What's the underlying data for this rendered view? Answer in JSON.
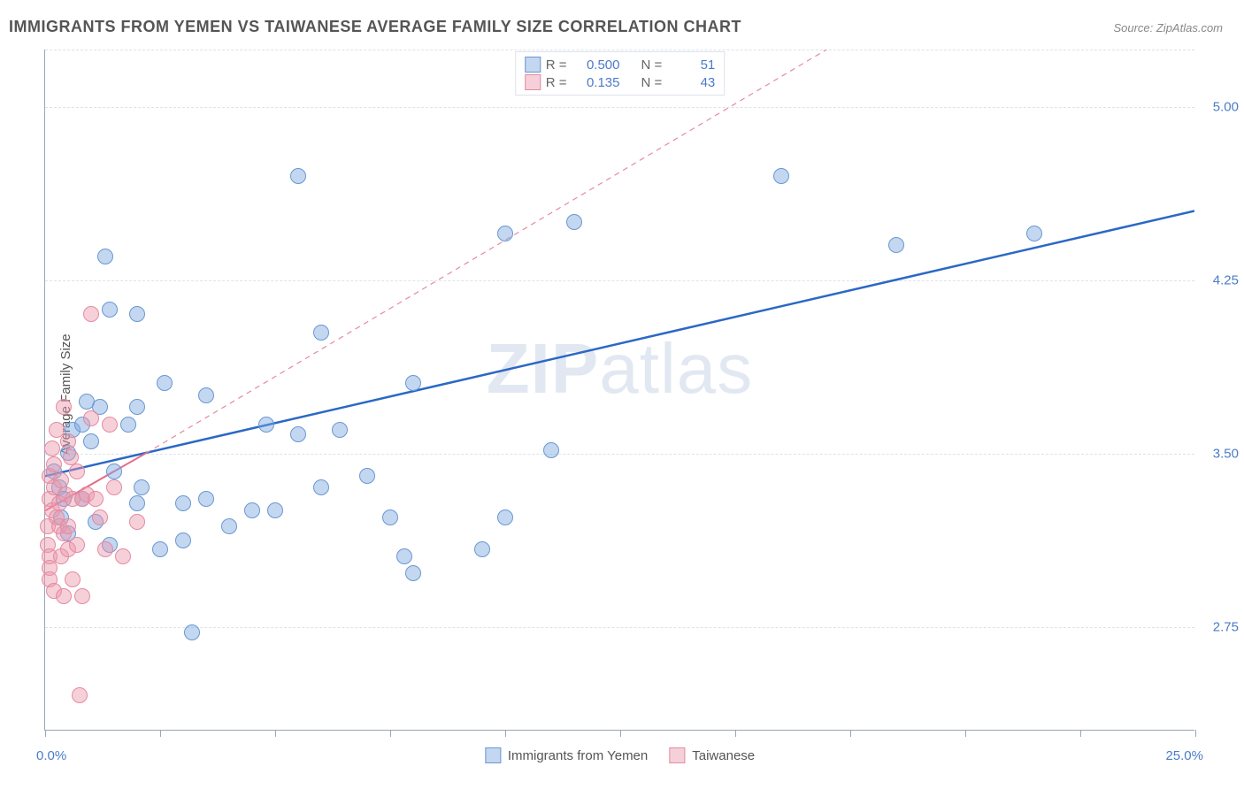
{
  "title": "IMMIGRANTS FROM YEMEN VS TAIWANESE AVERAGE FAMILY SIZE CORRELATION CHART",
  "source": "Source: ZipAtlas.com",
  "watermark_bold": "ZIP",
  "watermark_rest": "atlas",
  "y_axis_title": "Average Family Size",
  "chart": {
    "type": "scatter",
    "x_min": 0.0,
    "x_max": 25.0,
    "x_min_label": "0.0%",
    "x_max_label": "25.0%",
    "y_min": 2.3,
    "y_max": 5.25,
    "y_ticks": [
      2.75,
      3.5,
      4.25,
      5.0
    ],
    "y_tick_labels": [
      "2.75",
      "3.50",
      "4.25",
      "5.00"
    ],
    "x_tick_count": 10,
    "background_color": "#ffffff",
    "grid_color": "#dde2ea",
    "axis_color": "#9aa5b8",
    "point_radius": 9,
    "point_border_width": 1
  },
  "series": [
    {
      "name": "Immigrants from Yemen",
      "fill_color": "rgba(123,167,224,0.45)",
      "stroke_color": "#6a97d1",
      "trend_color": "#2b68c5",
      "trend_width": 2.5,
      "trend_dash": "none",
      "trend_start": [
        0.0,
        3.4
      ],
      "trend_end": [
        25.0,
        4.55
      ],
      "R": "0.500",
      "N": "51",
      "points": [
        [
          0.2,
          3.42
        ],
        [
          0.3,
          3.35
        ],
        [
          0.4,
          3.3
        ],
        [
          0.35,
          3.22
        ],
        [
          0.5,
          3.5
        ],
        [
          0.6,
          3.6
        ],
        [
          0.5,
          3.15
        ],
        [
          0.8,
          3.62
        ],
        [
          0.8,
          3.3
        ],
        [
          0.9,
          3.72
        ],
        [
          1.1,
          3.2
        ],
        [
          1.2,
          3.7
        ],
        [
          1.0,
          3.55
        ],
        [
          1.4,
          3.1
        ],
        [
          1.5,
          3.42
        ],
        [
          1.3,
          4.35
        ],
        [
          1.4,
          4.12
        ],
        [
          2.0,
          4.1
        ],
        [
          2.0,
          3.28
        ],
        [
          2.0,
          3.7
        ],
        [
          1.8,
          3.62
        ],
        [
          2.1,
          3.35
        ],
        [
          2.5,
          3.08
        ],
        [
          2.6,
          3.8
        ],
        [
          3.0,
          3.12
        ],
        [
          3.0,
          3.28
        ],
        [
          3.2,
          2.72
        ],
        [
          3.5,
          3.75
        ],
        [
          3.5,
          3.3
        ],
        [
          4.0,
          3.18
        ],
        [
          4.5,
          3.25
        ],
        [
          4.8,
          3.62
        ],
        [
          5.0,
          3.25
        ],
        [
          5.5,
          3.58
        ],
        [
          5.5,
          4.7
        ],
        [
          6.0,
          4.02
        ],
        [
          6.0,
          3.35
        ],
        [
          6.4,
          3.6
        ],
        [
          7.0,
          3.4
        ],
        [
          7.8,
          3.05
        ],
        [
          8.0,
          2.98
        ],
        [
          7.5,
          3.22
        ],
        [
          8.0,
          3.8
        ],
        [
          9.5,
          3.08
        ],
        [
          10.0,
          4.45
        ],
        [
          10.0,
          3.22
        ],
        [
          11.0,
          3.51
        ],
        [
          11.5,
          4.5
        ],
        [
          16.0,
          4.7
        ],
        [
          18.5,
          4.4
        ],
        [
          21.5,
          4.45
        ]
      ]
    },
    {
      "name": "Taiwanese",
      "fill_color": "rgba(236,150,170,0.45)",
      "stroke_color": "#e58aa1",
      "trend_color": "#e56b8a",
      "trend_width": 2,
      "trend_dash": "none",
      "trend_start": [
        0.0,
        3.25
      ],
      "trend_end": [
        2.2,
        3.5
      ],
      "dashed_ext_color": "#e58aa1",
      "dashed_ext_start": [
        2.2,
        3.5
      ],
      "dashed_ext_end": [
        17.0,
        5.25
      ],
      "R": "0.135",
      "N": "43",
      "points": [
        [
          0.05,
          3.18
        ],
        [
          0.05,
          3.1
        ],
        [
          0.1,
          3.3
        ],
        [
          0.1,
          3.05
        ],
        [
          0.1,
          3.0
        ],
        [
          0.1,
          2.95
        ],
        [
          0.1,
          3.4
        ],
        [
          0.15,
          3.52
        ],
        [
          0.15,
          3.25
        ],
        [
          0.2,
          2.9
        ],
        [
          0.2,
          3.35
        ],
        [
          0.2,
          3.45
        ],
        [
          0.25,
          3.6
        ],
        [
          0.25,
          3.22
        ],
        [
          0.3,
          3.18
        ],
        [
          0.3,
          3.28
        ],
        [
          0.35,
          3.05
        ],
        [
          0.35,
          3.38
        ],
        [
          0.4,
          3.7
        ],
        [
          0.4,
          3.15
        ],
        [
          0.4,
          2.88
        ],
        [
          0.45,
          3.32
        ],
        [
          0.5,
          3.55
        ],
        [
          0.5,
          3.18
        ],
        [
          0.5,
          3.08
        ],
        [
          0.55,
          3.48
        ],
        [
          0.6,
          3.3
        ],
        [
          0.6,
          2.95
        ],
        [
          0.7,
          3.1
        ],
        [
          0.7,
          3.42
        ],
        [
          0.75,
          2.45
        ],
        [
          0.8,
          3.3
        ],
        [
          0.8,
          2.88
        ],
        [
          0.9,
          3.32
        ],
        [
          1.0,
          3.65
        ],
        [
          1.0,
          4.1
        ],
        [
          1.1,
          3.3
        ],
        [
          1.2,
          3.22
        ],
        [
          1.3,
          3.08
        ],
        [
          1.4,
          3.62
        ],
        [
          1.5,
          3.35
        ],
        [
          1.7,
          3.05
        ],
        [
          2.0,
          3.2
        ]
      ]
    }
  ],
  "stats_legend": {
    "r_label": "R =",
    "n_label": "N ="
  },
  "bottom_legend": [
    {
      "label": "Immigrants from Yemen",
      "fill": "rgba(123,167,224,0.45)",
      "stroke": "#6a97d1"
    },
    {
      "label": "Taiwanese",
      "fill": "rgba(236,150,170,0.45)",
      "stroke": "#e58aa1"
    }
  ]
}
